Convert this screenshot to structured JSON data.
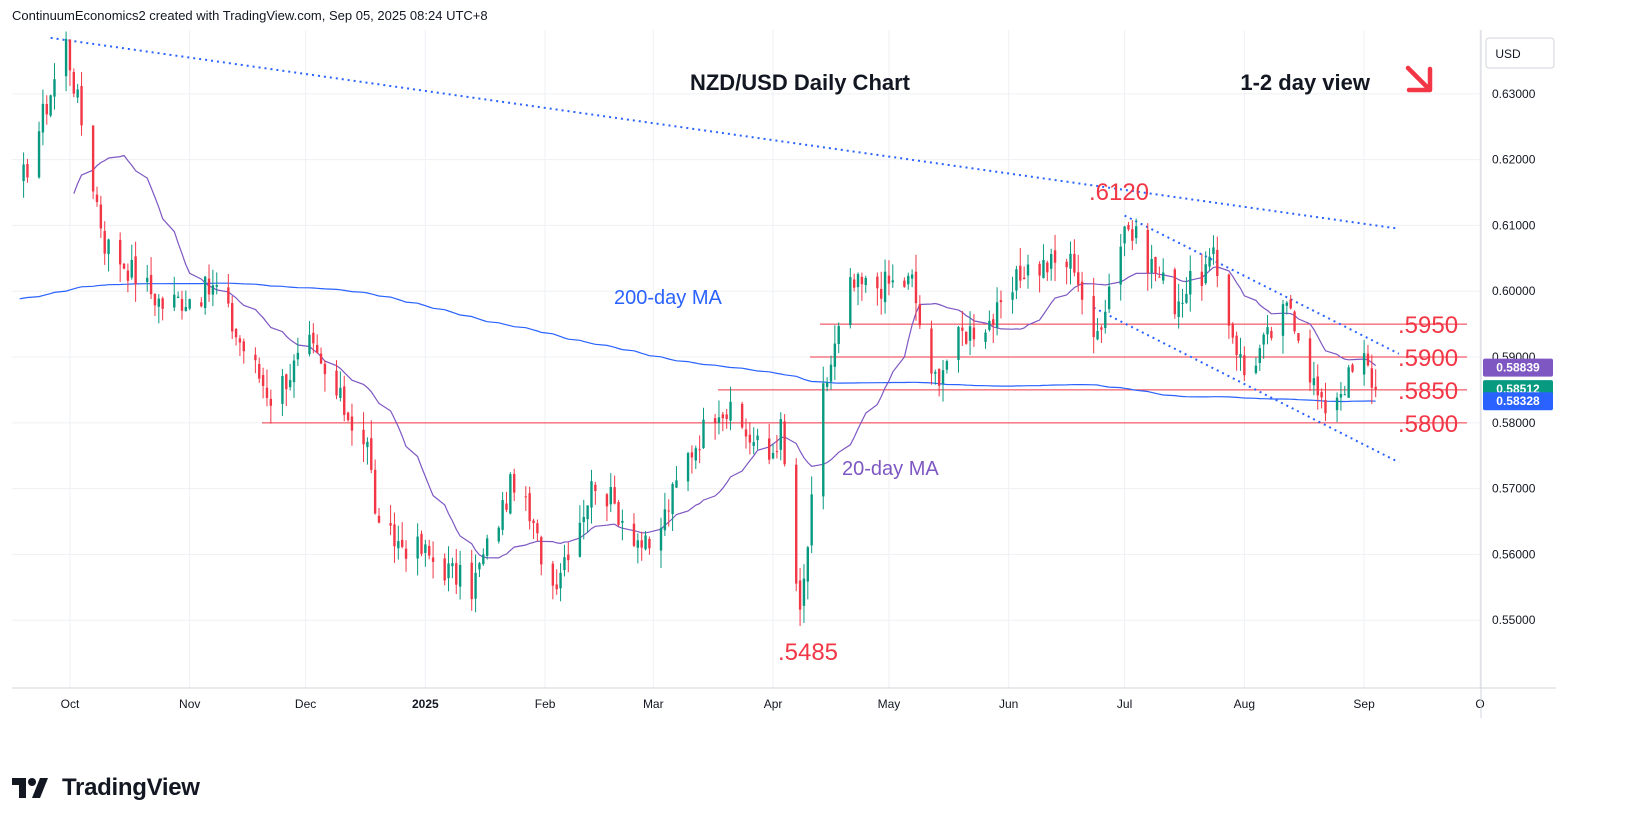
{
  "header": {
    "created_by": "ContinuumEconomics2 created with TradingView.com, Sep 05, 2025 08:24 UTC+8"
  },
  "footer": {
    "brand": "TradingView",
    "logo_icon": "tradingview-logo-icon"
  },
  "colors": {
    "up": "#089981",
    "down": "#f23645",
    "ma20": "#7e57c2",
    "ma200": "#2962ff",
    "level": "#f23645",
    "trendline": "#2962ff",
    "grid": "#eef0f4",
    "text": "#131722"
  },
  "chart_data": {
    "type": "candlestick",
    "title": "NZD/USD Daily Chart",
    "view_label": "1-2 day view",
    "view_icon": "arrow-down-right-icon",
    "currency": "USD",
    "ylim": [
      0.5397,
      0.6397
    ],
    "y_ticks": [
      "0.63000",
      "0.62000",
      "0.61000",
      "0.60000",
      "0.59000",
      "0.58000",
      "0.57000",
      "0.56000",
      "0.55000"
    ],
    "x_ticks": [
      "Oct",
      "Nov",
      "Dec",
      "2025",
      "Feb",
      "Mar",
      "Apr",
      "May",
      "Jun",
      "Jul",
      "Aug",
      "Sep",
      "O"
    ],
    "price_labels": [
      {
        "label": "20-day MA",
        "value": "0.58839",
        "color": "#7e57c2"
      },
      {
        "label": "Last",
        "value": "0.58512",
        "color": "#089981"
      },
      {
        "label": "200-day MA",
        "value": "0.58328",
        "color": "#2962ff"
      }
    ],
    "levels": [
      {
        "label": ".5950",
        "value": 0.595
      },
      {
        "label": ".5900",
        "value": 0.59
      },
      {
        "label": ".5850",
        "value": 0.585
      },
      {
        "label": ".5800",
        "value": 0.58
      }
    ],
    "annotations": [
      {
        "text": ".6120",
        "value": 0.612
      },
      {
        "text": ".5485",
        "value": 0.5485
      },
      {
        "text": "200-day MA"
      },
      {
        "text": "20-day MA"
      }
    ],
    "trendlines": [
      {
        "from": [
          "2024-09-26",
          0.6385
        ],
        "to": [
          "2025-09-10",
          0.6095
        ]
      },
      {
        "from": [
          "2025-07-01",
          0.6115
        ],
        "to": [
          "2025-09-10",
          0.5905
        ]
      },
      {
        "from": [
          "2025-06-23",
          0.5975
        ],
        "to": [
          "2025-09-10",
          0.574
        ]
      }
    ],
    "anchors": [
      [
        "2024-09-18",
        0.6155
      ],
      [
        "2024-09-30",
        0.6378
      ],
      [
        "2024-10-10",
        0.6075
      ],
      [
        "2024-10-25",
        0.598
      ],
      [
        "2024-11-08",
        0.6005
      ],
      [
        "2024-11-13",
        0.5935
      ],
      [
        "2024-11-22",
        0.584
      ],
      [
        "2024-12-02",
        0.5915
      ],
      [
        "2024-12-06",
        0.587
      ],
      [
        "2024-12-17",
        0.5765
      ],
      [
        "2024-12-20",
        0.563
      ],
      [
        "2024-12-31",
        0.5605
      ],
      [
        "2025-01-13",
        0.555
      ],
      [
        "2025-01-24",
        0.5715
      ],
      [
        "2025-02-03",
        0.5555
      ],
      [
        "2025-02-14",
        0.5715
      ],
      [
        "2025-02-28",
        0.56
      ],
      [
        "2025-03-10",
        0.575
      ],
      [
        "2025-03-18",
        0.583
      ],
      [
        "2025-03-31",
        0.5745
      ],
      [
        "2025-04-03",
        0.579
      ],
      [
        "2025-04-08",
        0.55
      ],
      [
        "2025-04-14",
        0.5845
      ],
      [
        "2025-04-21",
        0.6005
      ],
      [
        "2025-05-07",
        0.6015
      ],
      [
        "2025-05-12",
        0.586
      ],
      [
        "2025-05-20",
        0.5935
      ],
      [
        "2025-05-30",
        0.5965
      ],
      [
        "2025-06-05",
        0.6035
      ],
      [
        "2025-06-18",
        0.6045
      ],
      [
        "2025-06-23",
        0.5915
      ],
      [
        "2025-07-01",
        0.6105
      ],
      [
        "2025-07-14",
        0.5985
      ],
      [
        "2025-07-24",
        0.6045
      ],
      [
        "2025-08-01",
        0.5875
      ],
      [
        "2025-08-13",
        0.598
      ],
      [
        "2025-08-21",
        0.582
      ],
      [
        "2025-09-01",
        0.5895
      ],
      [
        "2025-09-04",
        0.5851
      ]
    ],
    "candle_count": 252,
    "ma20_value": 0.58839,
    "ma200_value": 0.58328
  }
}
